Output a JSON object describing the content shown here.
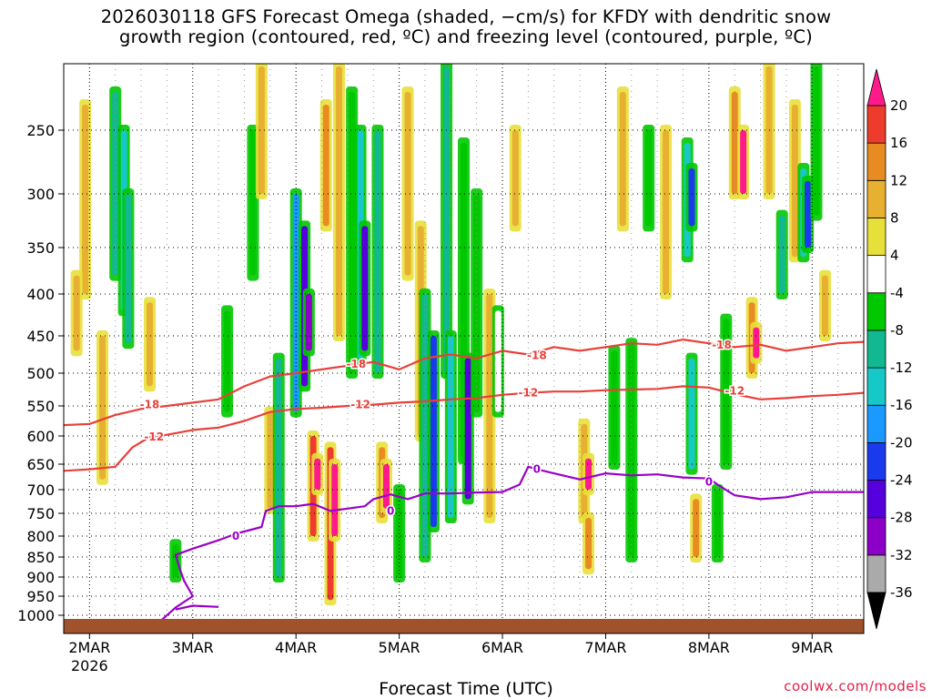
{
  "title_line1": "2026030118 GFS Forecast Omega (shaded, −cm/s) for KFDY with dendritic snow",
  "title_line2": "growth region (contoured, red, ºC) and freezing level (contoured, purple, ºC)",
  "credit": "coolwx.com/models",
  "chart_data": {
    "type": "heatmap",
    "title": "2026030118 GFS Forecast Omega (shaded, −cm/s) for KFDY with dendritic snow growth region (contoured, red, ºC) and freezing level (contoured, purple, ºC)",
    "xlabel": "Forecast Time (UTC)",
    "ylabel": "",
    "x_unit": "hours since 2026-03-01 18Z",
    "xlim": [
      0,
      186
    ],
    "ylim": [
      1020,
      200
    ],
    "y_ticks": [
      250,
      300,
      350,
      400,
      450,
      500,
      550,
      600,
      650,
      700,
      750,
      800,
      850,
      900,
      950,
      1000
    ],
    "y_tick_labels": [
      "250",
      "300",
      "350",
      "400",
      "450",
      "500",
      "550",
      "600",
      "650",
      "700",
      "750",
      "800",
      "850",
      "900",
      "950",
      "1000"
    ],
    "x_ticks": [
      6,
      30,
      54,
      78,
      102,
      126,
      150,
      174
    ],
    "x_tick_labels": [
      "2MAR",
      "3MAR",
      "4MAR",
      "5MAR",
      "6MAR",
      "7MAR",
      "8MAR",
      "9MAR"
    ],
    "x_year_label": "2026",
    "colorbar": {
      "levels": [
        -36,
        -32,
        -28,
        -24,
        -20,
        -16,
        -12,
        -8,
        -4,
        4,
        8,
        12,
        16,
        20
      ],
      "tick_labels": [
        "-36",
        "-32",
        "-28",
        "-24",
        "-20",
        "-16",
        "-12",
        "-8",
        "-4",
        "4",
        "8",
        "12",
        "16",
        "20"
      ],
      "colors": [
        "#000000",
        "#aaaaaa",
        "#8c00c8",
        "#5500dd",
        "#1a3aee",
        "#1a99ff",
        "#16c8c8",
        "#11b890",
        "#00c800",
        "#ffffff",
        "#e8e03a",
        "#e8b030",
        "#e88c22",
        "#ee3c2c",
        "#ff1a8c"
      ]
    },
    "omega_cells": [
      {
        "t": 12,
        "p1": 220,
        "p2": 380,
        "v": -12
      },
      {
        "t": 14,
        "p1": 250,
        "p2": 420,
        "v": -16
      },
      {
        "t": 15,
        "p1": 300,
        "p2": 460,
        "v": -12
      },
      {
        "t": 5,
        "p1": 230,
        "p2": 400,
        "v": 8
      },
      {
        "t": 3,
        "p1": 380,
        "p2": 470,
        "v": 8
      },
      {
        "t": 9,
        "p1": 450,
        "p2": 680,
        "v": 8
      },
      {
        "t": 20,
        "p1": 410,
        "p2": 520,
        "v": 8
      },
      {
        "t": 26,
        "p1": 820,
        "p2": 900,
        "v": -8
      },
      {
        "t": 38,
        "p1": 420,
        "p2": 560,
        "v": -8
      },
      {
        "t": 44,
        "p1": 250,
        "p2": 380,
        "v": -8
      },
      {
        "t": 46,
        "p1": 200,
        "p2": 300,
        "v": 8
      },
      {
        "t": 48,
        "p1": 560,
        "p2": 740,
        "v": 8
      },
      {
        "t": 50,
        "p1": 480,
        "p2": 900,
        "v": -12
      },
      {
        "t": 54,
        "p1": 300,
        "p2": 560,
        "v": -20
      },
      {
        "t": 56,
        "p1": 330,
        "p2": 520,
        "v": -28
      },
      {
        "t": 57,
        "p1": 400,
        "p2": 470,
        "v": -32
      },
      {
        "t": 58,
        "p1": 600,
        "p2": 800,
        "v": 16
      },
      {
        "t": 59,
        "p1": 640,
        "p2": 700,
        "v": 20
      },
      {
        "t": 62,
        "p1": 620,
        "p2": 960,
        "v": 16
      },
      {
        "t": 63,
        "p1": 650,
        "p2": 800,
        "v": 20
      },
      {
        "t": 61,
        "p1": 230,
        "p2": 330,
        "v": 12
      },
      {
        "t": 64,
        "p1": 200,
        "p2": 450,
        "v": 8
      },
      {
        "t": 67,
        "p1": 220,
        "p2": 500,
        "v": -8
      },
      {
        "t": 69,
        "p1": 250,
        "p2": 480,
        "v": -16
      },
      {
        "t": 70,
        "p1": 330,
        "p2": 470,
        "v": -28
      },
      {
        "t": 73,
        "p1": 250,
        "p2": 500,
        "v": -12
      },
      {
        "t": 74,
        "p1": 620,
        "p2": 760,
        "v": 12
      },
      {
        "t": 75,
        "p1": 650,
        "p2": 740,
        "v": 20
      },
      {
        "t": 78,
        "p1": 700,
        "p2": 900,
        "v": -8
      },
      {
        "t": 80,
        "p1": 220,
        "p2": 380,
        "v": 8
      },
      {
        "t": 83,
        "p1": 330,
        "p2": 600,
        "v": 8
      },
      {
        "t": 84,
        "p1": 400,
        "p2": 850,
        "v": -12
      },
      {
        "t": 86,
        "p1": 450,
        "p2": 780,
        "v": -24
      },
      {
        "t": 89,
        "p1": 200,
        "p2": 500,
        "v": -12
      },
      {
        "t": 90,
        "p1": 450,
        "p2": 760,
        "v": -16
      },
      {
        "t": 93,
        "p1": 260,
        "p2": 640,
        "v": -8
      },
      {
        "t": 94,
        "p1": 480,
        "p2": 720,
        "v": -28
      },
      {
        "t": 96,
        "p1": 300,
        "p2": 560,
        "v": -8
      },
      {
        "t": 99,
        "p1": 400,
        "p2": 760,
        "v": 8
      },
      {
        "t": 101,
        "p1": 420,
        "p2": 560,
        "v": -4
      },
      {
        "t": 105,
        "p1": 250,
        "p2": 330,
        "v": 8
      },
      {
        "t": 121,
        "p1": 580,
        "p2": 760,
        "v": 8
      },
      {
        "t": 122,
        "p1": 640,
        "p2": 700,
        "v": 20
      },
      {
        "t": 122,
        "p1": 760,
        "p2": 880,
        "v": 12
      },
      {
        "t": 128,
        "p1": 470,
        "p2": 650,
        "v": -8
      },
      {
        "t": 130,
        "p1": 220,
        "p2": 330,
        "v": 8
      },
      {
        "t": 132,
        "p1": 460,
        "p2": 850,
        "v": -8
      },
      {
        "t": 136,
        "p1": 250,
        "p2": 330,
        "v": -8
      },
      {
        "t": 140,
        "p1": 250,
        "p2": 400,
        "v": 8
      },
      {
        "t": 145,
        "p1": 260,
        "p2": 360,
        "v": -16
      },
      {
        "t": 146,
        "p1": 280,
        "p2": 330,
        "v": -24
      },
      {
        "t": 146,
        "p1": 480,
        "p2": 660,
        "v": -16
      },
      {
        "t": 147,
        "p1": 720,
        "p2": 850,
        "v": 12
      },
      {
        "t": 152,
        "p1": 700,
        "p2": 850,
        "v": -8
      },
      {
        "t": 154,
        "p1": 430,
        "p2": 650,
        "v": -8
      },
      {
        "t": 156,
        "p1": 220,
        "p2": 300,
        "v": 12
      },
      {
        "t": 158,
        "p1": 250,
        "p2": 300,
        "v": 20
      },
      {
        "t": 160,
        "p1": 410,
        "p2": 500,
        "v": 12
      },
      {
        "t": 161,
        "p1": 440,
        "p2": 480,
        "v": 20
      },
      {
        "t": 164,
        "p1": 200,
        "p2": 300,
        "v": 8
      },
      {
        "t": 167,
        "p1": 320,
        "p2": 400,
        "v": -12
      },
      {
        "t": 170,
        "p1": 230,
        "p2": 360,
        "v": 8
      },
      {
        "t": 172,
        "p1": 280,
        "p2": 360,
        "v": -16
      },
      {
        "t": 173,
        "p1": 290,
        "p2": 350,
        "v": -24
      },
      {
        "t": 175,
        "p1": 200,
        "p2": 320,
        "v": -8
      },
      {
        "t": 177,
        "p1": 380,
        "p2": 450,
        "v": 8
      }
    ],
    "contours": [
      {
        "label": "-18",
        "color": "#e8403a",
        "points": [
          [
            0,
            582
          ],
          [
            6,
            580
          ],
          [
            12,
            565
          ],
          [
            18,
            555
          ],
          [
            24,
            550
          ],
          [
            30,
            545
          ],
          [
            36,
            540
          ],
          [
            42,
            520
          ],
          [
            48,
            505
          ],
          [
            54,
            500
          ],
          [
            60,
            495
          ],
          [
            66,
            490
          ],
          [
            72,
            485
          ],
          [
            78,
            495
          ],
          [
            84,
            480
          ],
          [
            90,
            475
          ],
          [
            96,
            480
          ],
          [
            102,
            470
          ],
          [
            108,
            475
          ],
          [
            114,
            465
          ],
          [
            120,
            470
          ],
          [
            126,
            465
          ],
          [
            132,
            460
          ],
          [
            138,
            462
          ],
          [
            144,
            455
          ],
          [
            150,
            460
          ],
          [
            156,
            465
          ],
          [
            162,
            462
          ],
          [
            168,
            470
          ],
          [
            174,
            465
          ],
          [
            180,
            460
          ],
          [
            186,
            458
          ]
        ],
        "labels_at": [
          [
            20,
            548,
            "-18"
          ],
          [
            68,
            488,
            "-18"
          ],
          [
            110,
            476,
            "-18"
          ],
          [
            153,
            462,
            "-18"
          ]
        ]
      },
      {
        "label": "-12",
        "color": "#e8403a",
        "points": [
          [
            0,
            663
          ],
          [
            6,
            660
          ],
          [
            12,
            655
          ],
          [
            16,
            620
          ],
          [
            20,
            602
          ],
          [
            24,
            598
          ],
          [
            30,
            590
          ],
          [
            36,
            586
          ],
          [
            42,
            575
          ],
          [
            48,
            560
          ],
          [
            54,
            555
          ],
          [
            60,
            553
          ],
          [
            66,
            550
          ],
          [
            72,
            548
          ],
          [
            78,
            545
          ],
          [
            84,
            543
          ],
          [
            90,
            540
          ],
          [
            96,
            538
          ],
          [
            102,
            533
          ],
          [
            108,
            530
          ],
          [
            114,
            528
          ],
          [
            120,
            528
          ],
          [
            126,
            526
          ],
          [
            132,
            525
          ],
          [
            138,
            524
          ],
          [
            144,
            520
          ],
          [
            150,
            522
          ],
          [
            156,
            532
          ],
          [
            162,
            540
          ],
          [
            168,
            538
          ],
          [
            174,
            535
          ],
          [
            180,
            533
          ],
          [
            186,
            530
          ]
        ],
        "labels_at": [
          [
            21,
            602,
            "-12"
          ],
          [
            69,
            548,
            "-12"
          ],
          [
            108,
            530,
            "-12"
          ],
          [
            156,
            527,
            "-12"
          ]
        ]
      },
      {
        "label": "0",
        "color": "#9a00c8",
        "points": [
          [
            22,
            1020
          ],
          [
            26,
            980
          ],
          [
            30,
            950
          ],
          [
            28,
            910
          ],
          [
            27,
            880
          ],
          [
            26,
            845
          ],
          [
            30,
            830
          ],
          [
            36,
            810
          ],
          [
            40,
            795
          ],
          [
            46,
            780
          ],
          [
            47,
            745
          ],
          [
            50,
            735
          ],
          [
            54,
            735
          ],
          [
            58,
            730
          ],
          [
            62,
            745
          ],
          [
            66,
            740
          ],
          [
            70,
            735
          ],
          [
            72,
            720
          ],
          [
            76,
            710
          ],
          [
            80,
            720
          ],
          [
            84,
            708
          ],
          [
            90,
            708
          ],
          [
            96,
            706
          ],
          [
            102,
            705
          ],
          [
            106,
            690
          ],
          [
            108,
            655
          ],
          [
            110,
            660
          ],
          [
            114,
            668
          ],
          [
            120,
            680
          ],
          [
            126,
            668
          ],
          [
            132,
            672
          ],
          [
            138,
            670
          ],
          [
            144,
            676
          ],
          [
            150,
            678
          ],
          [
            152,
            690
          ],
          [
            156,
            712
          ],
          [
            162,
            720
          ],
          [
            168,
            716
          ],
          [
            174,
            705
          ],
          [
            180,
            705
          ],
          [
            186,
            705
          ]
        ],
        "labels_at": [
          [
            40,
            800,
            "0"
          ],
          [
            76,
            745,
            "0"
          ],
          [
            110,
            660,
            "0"
          ],
          [
            150,
            685,
            "0"
          ]
        ]
      },
      {
        "label": "0-surface",
        "color": "#9a00c8",
        "points": [
          [
            26,
            985
          ],
          [
            30,
            975
          ],
          [
            36,
            978
          ]
        ],
        "labels_at": []
      }
    ]
  }
}
